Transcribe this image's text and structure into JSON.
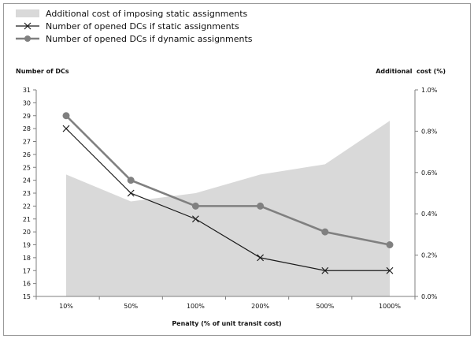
{
  "chart_data": {
    "type": "line",
    "categories": [
      "10%",
      "50%",
      "100%",
      "200%",
      "500%",
      "1000%"
    ],
    "xlabel": "Penalty (% of unit transit cost)",
    "ylabel_left": "Number of DCs",
    "ylabel_right": "Additional  cost (%)",
    "ylim_left": [
      15,
      31
    ],
    "yticks_left": [
      "15",
      "16",
      "17",
      "18",
      "19",
      "20",
      "21",
      "22",
      "23",
      "24",
      "25",
      "26",
      "27",
      "28",
      "29",
      "30",
      "31"
    ],
    "ylim_right": [
      0,
      1.0
    ],
    "yticks_right": [
      "0.0%",
      "0.2%",
      "0.4%",
      "0.6%",
      "0.8%",
      "1.0%"
    ],
    "legend_placement": "top-left",
    "grid": false,
    "series": [
      {
        "name": "Additional cost of imposing static assignments",
        "kind": "area",
        "axis": "right",
        "values": [
          0.59,
          0.46,
          0.5,
          0.59,
          0.64,
          0.85
        ],
        "color": "#d9d9d9"
      },
      {
        "name": "Number of opened DCs if static assignments",
        "kind": "line",
        "marker": "x",
        "axis": "left",
        "values": [
          28,
          23,
          21,
          18,
          17,
          17
        ],
        "color": "#1a1a1a"
      },
      {
        "name": "Number of opened DCs if dynamic assignments",
        "kind": "line",
        "marker": "circle",
        "axis": "left",
        "values": [
          29,
          24,
          22,
          22,
          20,
          19
        ],
        "color": "#808080"
      }
    ]
  }
}
